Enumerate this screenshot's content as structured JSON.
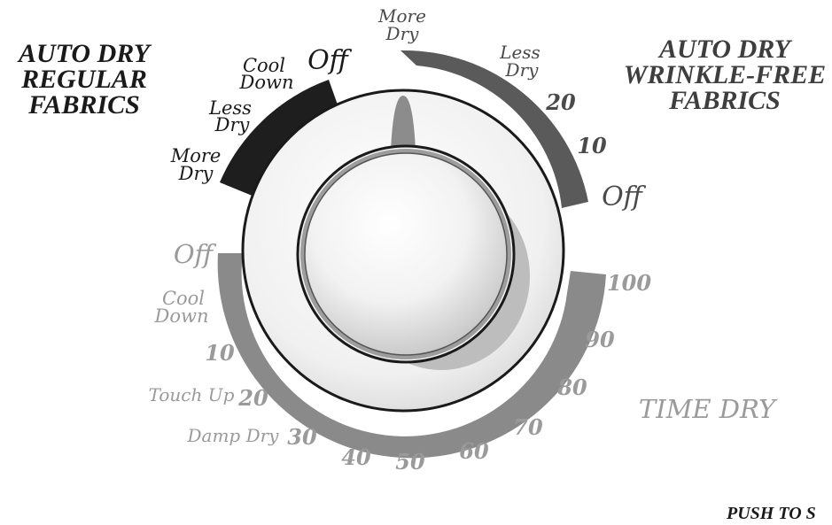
{
  "sections": {
    "regular": {
      "title_lines": [
        "AUTO DRY",
        "REGULAR",
        "FABRICS"
      ],
      "settings": {
        "more_dry": [
          "More",
          "Dry"
        ],
        "less_dry": [
          "Less",
          "Dry"
        ],
        "cool_down": [
          "Cool",
          "Down"
        ],
        "off": "Off"
      },
      "color": "#1e1e1e"
    },
    "wrinkle_free": {
      "title_lines": [
        "AUTO DRY",
        "WRINKLE-FREE",
        "FABRICS"
      ],
      "settings": {
        "more_dry": [
          "More",
          "Dry"
        ],
        "less_dry": [
          "Less",
          "Dry"
        ],
        "t20": "20",
        "t10": "10",
        "off": "Off"
      },
      "color": "#5a5a5a"
    },
    "time_dry": {
      "title": "TIME DRY",
      "settings": {
        "off": "Off",
        "cool_down": [
          "Cool",
          "Down"
        ],
        "t10": "10",
        "touch_up": "Touch Up",
        "t20": "20",
        "damp_dry": "Damp Dry",
        "t30": "30",
        "t40": "40",
        "t50": "50",
        "t60": "60",
        "t70": "70",
        "t80": "80",
        "t90": "90",
        "t100": "100"
      },
      "color": "#8a8a8a",
      "label_color": "#9a9a9a"
    }
  },
  "push_text": "PUSH TO S"
}
